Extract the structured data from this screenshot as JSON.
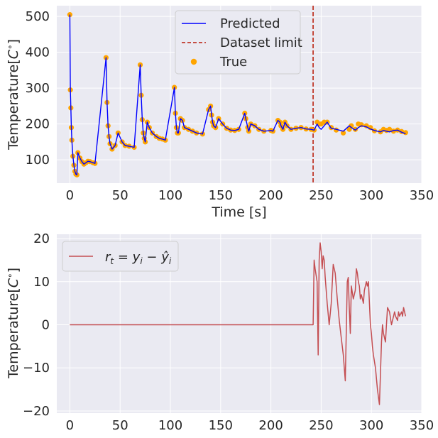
{
  "chart_data": [
    {
      "type": "line",
      "xlabel": "Time [s]",
      "ylabel": "Temperature[$C^\\circ$]",
      "xlim": [
        -13,
        350
      ],
      "ylim": [
        35,
        530
      ],
      "xticks": [
        0,
        50,
        100,
        150,
        200,
        250,
        300,
        350
      ],
      "yticks": [
        100,
        200,
        300,
        400,
        500
      ],
      "grid": true,
      "legend_position": "top-center",
      "colors": {
        "predicted": "#0000ff",
        "limit": "#c0392b",
        "true": "#ffa500",
        "background": "#eaeaf2"
      },
      "series": [
        {
          "name": "Predicted",
          "style": "line",
          "x": [
            0,
            0.5,
            1,
            1.5,
            2,
            3,
            4,
            5,
            6,
            7,
            8,
            10,
            12,
            14,
            16,
            18,
            20,
            23,
            25,
            36,
            37,
            38,
            39,
            40,
            42,
            45,
            48,
            52,
            55,
            59,
            64,
            70,
            71,
            72,
            73,
            74,
            75,
            77,
            79,
            82,
            86,
            89,
            92,
            95,
            104,
            105,
            106,
            107,
            108,
            110,
            112,
            114,
            118,
            122,
            126,
            132,
            138,
            140,
            141,
            142,
            143,
            145,
            148,
            152,
            156,
            160,
            164,
            168,
            174,
            175,
            177,
            178,
            180,
            184,
            188,
            193,
            200,
            202,
            207,
            209,
            210,
            212,
            214,
            216,
            220,
            225,
            230,
            235,
            240,
            243,
            246,
            248,
            250,
            253,
            256,
            260,
            265,
            272,
            278,
            280,
            284,
            287,
            290,
            295,
            299,
            303,
            309,
            312,
            315,
            318,
            322,
            326,
            330,
            334
          ],
          "values": [
            505,
            295,
            245,
            190,
            155,
            110,
            85,
            68,
            60,
            58,
            120,
            105,
            95,
            88,
            92,
            96,
            95,
            92,
            90,
            385,
            260,
            195,
            165,
            145,
            130,
            140,
            175,
            150,
            140,
            138,
            135,
            365,
            280,
            212,
            175,
            160,
            150,
            205,
            190,
            175,
            165,
            160,
            158,
            155,
            302,
            230,
            190,
            175,
            175,
            215,
            210,
            190,
            185,
            180,
            175,
            172,
            240,
            250,
            225,
            205,
            195,
            190,
            215,
            200,
            188,
            183,
            182,
            185,
            230,
            215,
            190,
            180,
            200,
            195,
            185,
            180,
            182,
            180,
            210,
            205,
            195,
            185,
            205,
            195,
            185,
            188,
            190,
            186,
            185,
            183,
            200,
            190,
            185,
            195,
            205,
            188,
            185,
            180,
            195,
            190,
            183,
            190,
            195,
            192,
            186,
            182,
            178,
            182,
            180,
            178,
            182,
            183,
            177,
            173
          ]
        },
        {
          "name": "Dataset limit",
          "style": "dashed-vertical",
          "x": 242
        },
        {
          "name": "True",
          "style": "scatter",
          "x": [
            0,
            0.5,
            1,
            1.5,
            2,
            3,
            4,
            5,
            6,
            7,
            8,
            10,
            12,
            14,
            16,
            18,
            20,
            23,
            25,
            36,
            37,
            38,
            39,
            40,
            42,
            45,
            48,
            52,
            55,
            59,
            64,
            70,
            71,
            72,
            73,
            74,
            75,
            77,
            79,
            82,
            86,
            89,
            92,
            95,
            104,
            105,
            106,
            107,
            108,
            110,
            112,
            114,
            118,
            122,
            126,
            132,
            138,
            140,
            141,
            142,
            143,
            145,
            148,
            152,
            156,
            160,
            164,
            168,
            174,
            175,
            177,
            178,
            180,
            184,
            188,
            193,
            200,
            202,
            207,
            209,
            210,
            212,
            214,
            216,
            220,
            225,
            230,
            235,
            240,
            243,
            246,
            248,
            250,
            253,
            256,
            260,
            265,
            272,
            278,
            280,
            284,
            287,
            290,
            295,
            299,
            303,
            309,
            312,
            315,
            318,
            322,
            326,
            330,
            334
          ],
          "values": [
            505,
            295,
            245,
            190,
            155,
            110,
            85,
            68,
            60,
            58,
            120,
            105,
            95,
            88,
            92,
            96,
            95,
            92,
            90,
            385,
            260,
            195,
            165,
            145,
            130,
            140,
            175,
            150,
            140,
            138,
            135,
            365,
            280,
            212,
            175,
            160,
            150,
            205,
            190,
            175,
            165,
            160,
            158,
            155,
            302,
            230,
            190,
            175,
            175,
            215,
            210,
            190,
            185,
            180,
            175,
            172,
            240,
            250,
            225,
            205,
            195,
            190,
            215,
            200,
            188,
            183,
            182,
            185,
            230,
            215,
            190,
            180,
            200,
            195,
            185,
            180,
            182,
            180,
            210,
            205,
            195,
            185,
            205,
            195,
            185,
            188,
            190,
            186,
            185,
            183,
            205,
            200,
            200,
            205,
            205,
            190,
            183,
            175,
            185,
            195,
            185,
            200,
            198,
            195,
            190,
            181,
            178,
            185,
            182,
            185,
            180,
            183,
            179,
            176
          ]
        }
      ]
    },
    {
      "type": "line",
      "xlabel": "",
      "ylabel": "Temperature[$C^\\circ$]",
      "xlim": [
        -13,
        350
      ],
      "ylim": [
        -20.5,
        21
      ],
      "xticks": [
        0,
        50,
        100,
        150,
        200,
        250,
        300,
        350
      ],
      "yticks": [
        -20,
        -10,
        0,
        10,
        20
      ],
      "grid": true,
      "legend_position": "top-left",
      "colors": {
        "residual": "#c44e52",
        "background": "#eaeaf2"
      },
      "series": [
        {
          "name": "$r_t = y_i - \\hat{y}_i$",
          "x": [
            0,
            242,
            243,
            244,
            246,
            247,
            248,
            249,
            250,
            251,
            252,
            253,
            254,
            256,
            258,
            260,
            262,
            264,
            266,
            268,
            270,
            272,
            274,
            276,
            277,
            278,
            279,
            280,
            282,
            284,
            285,
            286,
            287,
            288,
            289,
            290,
            291,
            292,
            293,
            294,
            295,
            296,
            297,
            298,
            299,
            300,
            301,
            302,
            304,
            306,
            308,
            310,
            311,
            312,
            314,
            315,
            316,
            318,
            320,
            321,
            322,
            323,
            324,
            326,
            327,
            328,
            330,
            331,
            332,
            333,
            334
          ],
          "values": [
            0,
            0,
            15,
            13,
            10,
            -7,
            15,
            19,
            17,
            13,
            16,
            15,
            11,
            5,
            0,
            5,
            14,
            12,
            6,
            1,
            -3,
            -7,
            -13,
            10,
            11,
            4,
            -2,
            9,
            6,
            8,
            13,
            12,
            10,
            9,
            6,
            7,
            6,
            5,
            8,
            9,
            10,
            9,
            10,
            5,
            0,
            -2,
            -5,
            -7,
            -10,
            -15,
            -18.5,
            -4,
            0,
            -2,
            -4,
            0,
            4,
            3,
            0,
            1,
            2,
            3,
            2,
            1,
            3,
            2,
            3,
            2,
            4,
            3,
            2
          ]
        }
      ]
    }
  ]
}
